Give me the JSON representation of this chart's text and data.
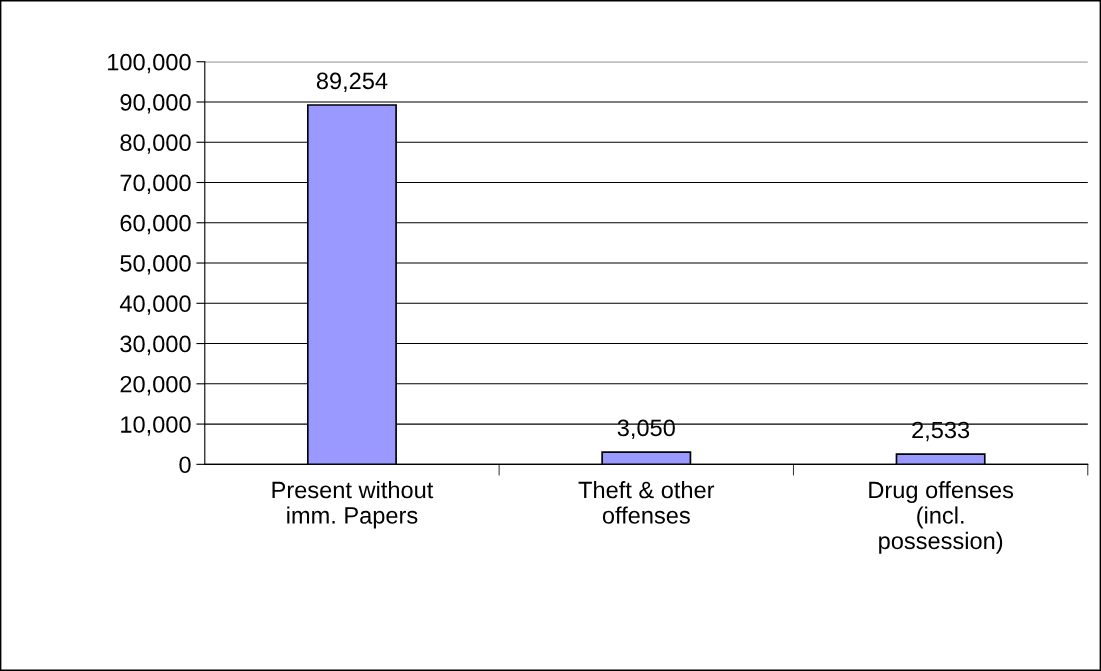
{
  "chart_data": {
    "type": "bar",
    "categories": [
      "Present without\nimm. Papers",
      "Theft & other\noffenses",
      "Drug offenses\n(incl.\npossession)"
    ],
    "series": [
      {
        "color": "#9999ff",
        "values": [
          89254,
          3050,
          2533
        ]
      }
    ],
    "ylim": [
      0,
      100000
    ],
    "yticks": [
      {
        "value": 0,
        "label": "0"
      },
      {
        "value": 10000,
        "label": "10,000"
      },
      {
        "value": 20000,
        "label": "20,000"
      },
      {
        "value": 30000,
        "label": "30,000"
      },
      {
        "value": 40000,
        "label": "40,000"
      },
      {
        "value": 50000,
        "label": "50,000"
      },
      {
        "value": 60000,
        "label": "60,000"
      },
      {
        "value": 70000,
        "label": "70,000"
      },
      {
        "value": 80000,
        "label": "80,000"
      },
      {
        "value": 90000,
        "label": "90,000"
      },
      {
        "value": 100000,
        "label": "100,000"
      }
    ],
    "value_labels": [
      "89,254",
      "3,050",
      "2,533"
    ],
    "grid": "y",
    "legend": false
  }
}
